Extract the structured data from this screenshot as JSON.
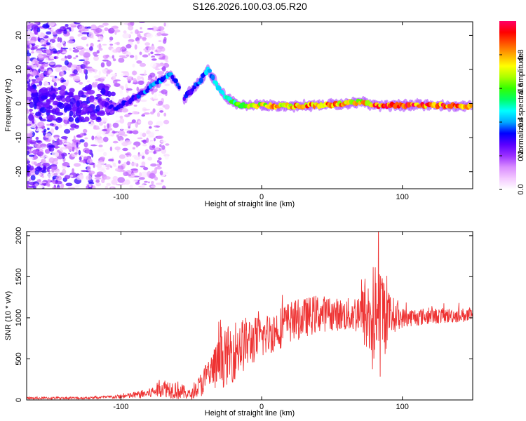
{
  "title": "S126.2026.100.03.05.R20",
  "chart_data": [
    {
      "type": "heatmap",
      "xlabel": "Height of straight line (km)",
      "ylabel": "Frequency (Hz)",
      "xlim": [
        -167,
        150
      ],
      "ylim": [
        -25,
        24
      ],
      "xticks": [
        -100,
        0,
        100
      ],
      "yticks": [
        -20,
        -10,
        0,
        10,
        20
      ],
      "colorbar": {
        "label": "Normalized spectral amplitude",
        "range": [
          0,
          1
        ],
        "ticks": [
          "0.0",
          "0.2",
          "0.4",
          "0.6",
          "0.8"
        ],
        "tick_values": [
          0.0,
          0.2,
          0.4,
          0.6,
          0.8
        ],
        "colors": [
          "#ffffff",
          "#f3c8ff",
          "#d98cff",
          "#9b30ff",
          "#5a00ff",
          "#0000ff",
          "#00aaff",
          "#00ffff",
          "#00ff66",
          "#33ff00",
          "#aaff00",
          "#ffff00",
          "#ffaa00",
          "#ff5500",
          "#ff0000",
          "#ff0066"
        ]
      },
      "ridge": {
        "x": [
          -115,
          -105,
          -95,
          -85,
          -75,
          -65,
          -60,
          -55,
          -45,
          -38,
          -32,
          -25,
          -15,
          0,
          20,
          40,
          60,
          70,
          80,
          100,
          120,
          150
        ],
        "freq": [
          0.5,
          -1.5,
          0.5,
          3,
          6,
          8.5,
          6,
          1.5,
          6,
          10,
          5.5,
          1.5,
          -0.5,
          -0.5,
          -0.8,
          -0.5,
          0,
          0.5,
          -0.5,
          -0.5,
          -0.5,
          -0.7
        ],
        "amp": [
          0.22,
          0.28,
          0.3,
          0.35,
          0.42,
          0.4,
          0.35,
          0.3,
          0.35,
          0.4,
          0.45,
          0.5,
          0.6,
          0.75,
          0.8,
          0.82,
          0.8,
          0.75,
          0.85,
          0.9,
          0.9,
          0.88
        ]
      }
    },
    {
      "type": "line",
      "xlabel": "Height of straight line (km)",
      "ylabel": "SNR (10 * v/v)",
      "xlim": [
        -167,
        150
      ],
      "ylim": [
        0,
        2050
      ],
      "xticks": [
        -100,
        0,
        100
      ],
      "yticks": [
        0,
        500,
        1000,
        1500,
        2000
      ],
      "color": "#ee3333",
      "envelope": {
        "x": [
          -167,
          -120,
          -100,
          -80,
          -70,
          -60,
          -50,
          -40,
          -30,
          -20,
          -10,
          0,
          10,
          20,
          30,
          40,
          50,
          60,
          70,
          75,
          80,
          85,
          90,
          100,
          120,
          140,
          150
        ],
        "mean": [
          20,
          25,
          40,
          80,
          150,
          120,
          60,
          250,
          450,
          600,
          700,
          760,
          850,
          950,
          1000,
          1050,
          1050,
          1030,
          1060,
          1000,
          950,
          1000,
          1050,
          1000,
          1020,
          1030,
          1030
        ],
        "spread": [
          15,
          15,
          25,
          60,
          110,
          120,
          50,
          200,
          320,
          380,
          320,
          260,
          260,
          260,
          240,
          240,
          200,
          200,
          260,
          500,
          750,
          750,
          280,
          120,
          100,
          90,
          90
        ]
      }
    }
  ]
}
